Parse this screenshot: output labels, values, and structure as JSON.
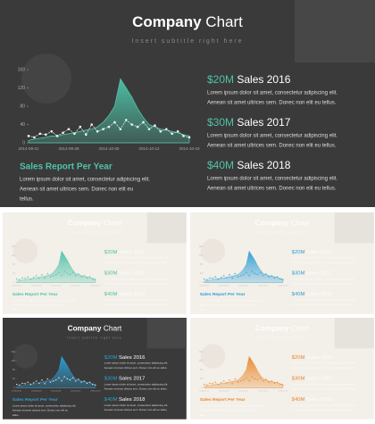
{
  "header": {
    "title_bold": "Company",
    "title_rest": " Chart",
    "subtitle": "Insert subtitle right here"
  },
  "chart_data": {
    "type": "area",
    "categories": [
      "2014-09-21",
      null,
      null,
      null,
      null,
      null,
      null,
      "2014-09-28",
      null,
      null,
      null,
      null,
      null,
      null,
      "2014-10-05",
      null,
      null,
      null,
      null,
      null,
      null,
      "2014-10-12",
      null,
      null,
      null,
      null,
      null,
      null,
      "2014-10-19"
    ],
    "series": [
      {
        "color": "#4fc3a8",
        "values": [
          5,
          8,
          10,
          12,
          15,
          14,
          18,
          20,
          22,
          25,
          28,
          30,
          35,
          45,
          60,
          80,
          140,
          120,
          100,
          75,
          55,
          40,
          35,
          30,
          28,
          25,
          22,
          18,
          15
        ]
      },
      {
        "color": "#e8f5f1",
        "values": [
          15,
          12,
          20,
          18,
          25,
          15,
          22,
          30,
          20,
          35,
          18,
          40,
          25,
          30,
          35,
          45,
          30,
          50,
          40,
          35,
          45,
          30,
          38,
          25,
          30,
          20,
          25,
          15,
          12
        ]
      }
    ],
    "ylim": [
      0,
      160
    ],
    "yticks": [
      0,
      40,
      80,
      120,
      160
    ]
  },
  "sales": [
    {
      "amount": "$20M",
      "label": "Sales 2016",
      "lines": [
        "Lorem ipsum dolor sit amet, consectetur adipiscing elit.",
        "Aenean sit amet ultrices sem. Donec non elit eu tellus."
      ]
    },
    {
      "amount": "$30M",
      "label": "Sales 2017",
      "lines": [
        "Lorem ipsum dolor sit amet, consectetur adipiscing elit.",
        "Aenean sit amet ultrices sem. Donec non elit eu tellus."
      ]
    },
    {
      "amount": "$40M",
      "label": "Sales 2018",
      "lines": [
        "Lorem ipsum dolor sit amet, consectetur adipiscing elit.",
        "Aenean sit amet ultrices sem. Donec non elit eu tellus."
      ]
    }
  ],
  "report": {
    "title": "Sales Report Per Year",
    "lines": [
      "Lorem ipsum dolor sit amet, consectetur adipiscing elit.",
      "Aenean sit amet ultrices sem. Donec non elit eu",
      "tellus."
    ]
  },
  "variants": [
    {
      "theme": "dark",
      "accent": "#4fc3a8"
    },
    {
      "theme": "light",
      "accent": "#4fc3a8"
    },
    {
      "theme": "light",
      "accent": "#2e9fd6"
    },
    {
      "theme": "dark",
      "accent": "#2e9fd6"
    },
    {
      "theme": "light",
      "accent": "#e8892a"
    }
  ]
}
